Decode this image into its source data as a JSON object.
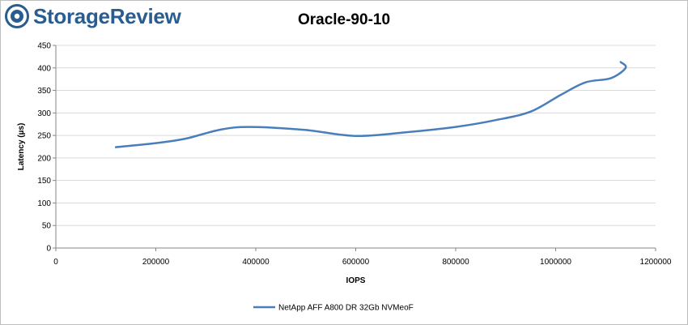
{
  "brand": {
    "logo_text": "StorageReview",
    "logo_color": "#2a5d8f"
  },
  "chart_data": {
    "type": "line",
    "title": "Oracle-90-10",
    "xlabel": "IOPS",
    "ylabel": "Latency (µs)",
    "xlim": [
      0,
      1200000
    ],
    "ylim": [
      0,
      450
    ],
    "xticks": [
      0,
      200000,
      400000,
      600000,
      800000,
      1000000,
      1200000
    ],
    "yticks": [
      0,
      50,
      100,
      150,
      200,
      250,
      300,
      350,
      400,
      450
    ],
    "grid": "horizontal",
    "legend": "bottom",
    "series": [
      {
        "name": "NetApp AFF A800 DR 32Gb NVMeoF",
        "color": "#4a7ebb",
        "x": [
          120000,
          200000,
          260000,
          330000,
          390000,
          500000,
          600000,
          700000,
          800000,
          880000,
          950000,
          1010000,
          1060000,
          1110000,
          1140000,
          1130000
        ],
        "y": [
          224,
          233,
          243,
          263,
          269,
          262,
          249,
          257,
          269,
          284,
          303,
          340,
          368,
          377,
          400,
          413
        ]
      }
    ]
  }
}
